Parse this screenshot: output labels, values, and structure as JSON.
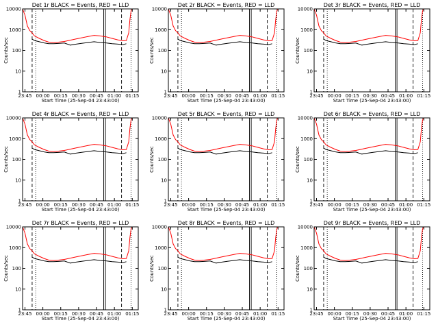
{
  "chart_data": {
    "type": "line",
    "layout": "3x3 grid",
    "xlabel": "Start Time (25-Sep-04 23:43:00)",
    "ylabel": "Counts/sec",
    "ylim": [
      1,
      10000
    ],
    "yscale": "log",
    "xlim_minutes": [
      0,
      97
    ],
    "x_ticks": [
      "23:45",
      "00:00",
      "00:15",
      "00:30",
      "00:45",
      "01:00",
      "01:15"
    ],
    "y_ticks": [
      "1",
      "10",
      "100",
      "1000",
      "10000"
    ],
    "colors": {
      "events": "#000000",
      "lld": "#ff0000",
      "axes": "#000000"
    },
    "legend": "in title: BLACK = Events, RED = LLD",
    "panels": [
      {
        "title": "Det 1r BLACK = Events, RED = LLD"
      },
      {
        "title": "Det 2r BLACK = Events, RED = LLD"
      },
      {
        "title": "Det 3r BLACK = Events, RED = LLD"
      },
      {
        "title": "Det 4r BLACK = Events, RED = LLD"
      },
      {
        "title": "Det 5r BLACK = Events, RED = LLD"
      },
      {
        "title": "Det 6r BLACK = Events, RED = LLD"
      },
      {
        "title": "Det 7r BLACK = Events, RED = LLD"
      },
      {
        "title": "Det 8r BLACK = Events, RED = LLD"
      },
      {
        "title": "Det 9r BLACK = Events, RED = LLD"
      }
    ],
    "series": [
      {
        "name": "LLD",
        "x_minutes": [
          0,
          2,
          4,
          6,
          8,
          10,
          14,
          18,
          22,
          26,
          30,
          35,
          40,
          45,
          50,
          55,
          60,
          65,
          70,
          75,
          80,
          84,
          87,
          89,
          90,
          91,
          92,
          93,
          95,
          97
        ],
        "values": [
          10000,
          5000,
          1500,
          900,
          700,
          500,
          380,
          300,
          250,
          240,
          250,
          270,
          310,
          360,
          410,
          470,
          530,
          500,
          450,
          380,
          320,
          290,
          300,
          700,
          3000,
          8000,
          10000,
          10000,
          10000,
          10000
        ]
      },
      {
        "name": "Events",
        "x_minutes": [
          8,
          10,
          14,
          18,
          22,
          26,
          30,
          35,
          40,
          45,
          50,
          55,
          60,
          65,
          70,
          75,
          80,
          84,
          87
        ],
        "values": [
          350,
          300,
          260,
          230,
          210,
          210,
          215,
          225,
          180,
          200,
          220,
          240,
          260,
          240,
          230,
          210,
          200,
          190,
          210
        ]
      }
    ],
    "vertical_markers_minutes": {
      "dashed": [
        8,
        83
      ],
      "dotted": [
        11,
        91
      ],
      "solid": [
        68,
        69.5
      ]
    }
  }
}
